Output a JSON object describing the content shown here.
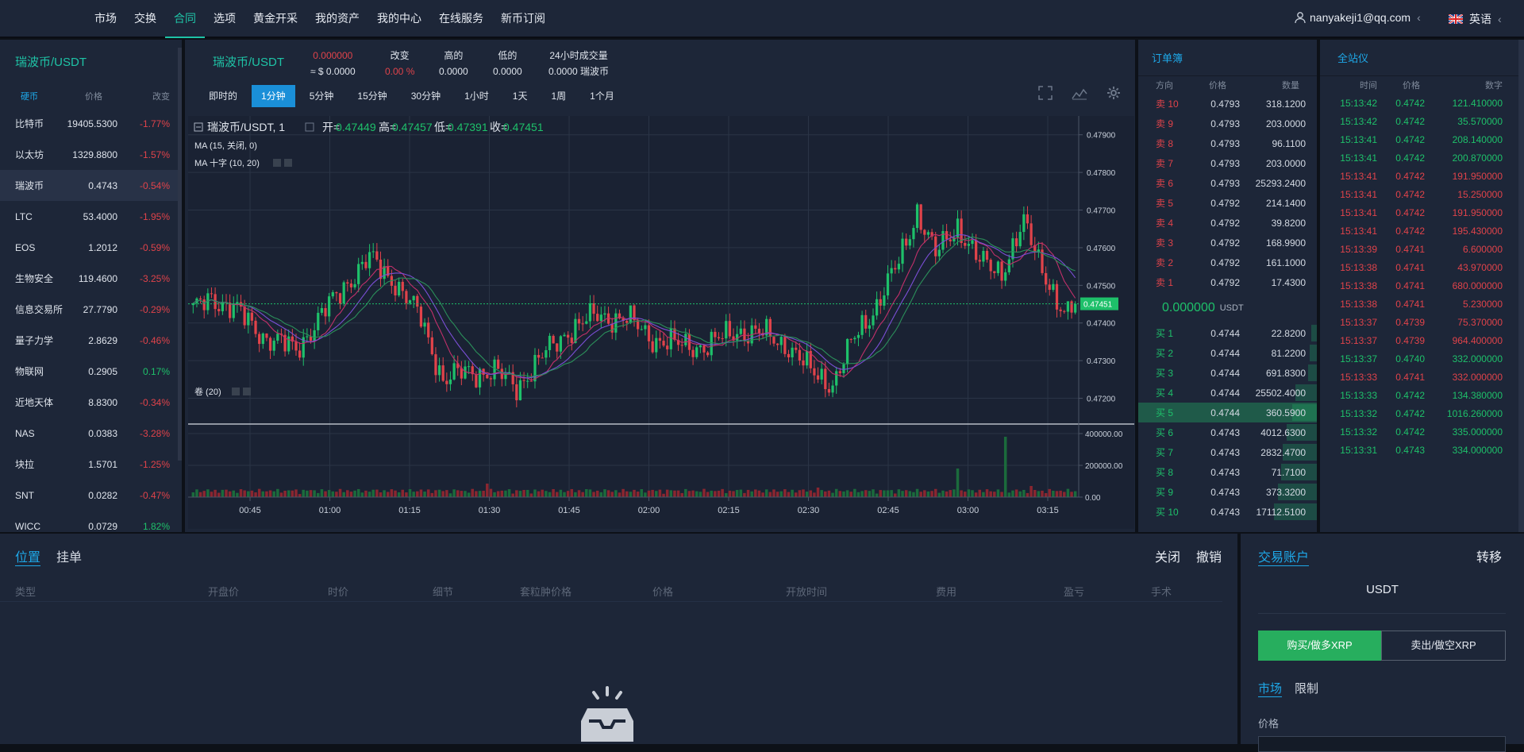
{
  "nav": {
    "items": [
      "市场",
      "交换",
      "合同",
      "选项",
      "黄金开采",
      "我的资产",
      "我的中心",
      "在线服务",
      "新币订阅"
    ],
    "active_index": 2,
    "user_email": "nanyakeji1@qq.com",
    "language": "英语"
  },
  "markets": {
    "pair": "瑞波币/USDT",
    "headers": [
      "硬币",
      "价格",
      "改变"
    ],
    "rows": [
      {
        "name": "比特币",
        "price": "19405.5300",
        "change": "-1.77%",
        "dir": "down"
      },
      {
        "name": "以太坊",
        "price": "1329.8800",
        "change": "-1.57%",
        "dir": "down"
      },
      {
        "name": "瑞波币",
        "price": "0.4743",
        "change": "-0.54%",
        "dir": "down",
        "selected": true
      },
      {
        "name": "LTC",
        "price": "53.4000",
        "change": "-1.95%",
        "dir": "down"
      },
      {
        "name": "EOS",
        "price": "1.2012",
        "change": "-0.59%",
        "dir": "down"
      },
      {
        "name": "生物安全",
        "price": "119.4600",
        "change": "-3.25%",
        "dir": "down"
      },
      {
        "name": "信息交易所",
        "price": "27.7790",
        "change": "-0.29%",
        "dir": "down"
      },
      {
        "name": "量子力学",
        "price": "2.8629",
        "change": "-0.46%",
        "dir": "down"
      },
      {
        "name": "物联网",
        "price": "0.2905",
        "change": "0.17%",
        "dir": "up"
      },
      {
        "name": "近地天体",
        "price": "8.8300",
        "change": "-0.34%",
        "dir": "down"
      },
      {
        "name": "NAS",
        "price": "0.0383",
        "change": "-3.28%",
        "dir": "down"
      },
      {
        "name": "块拉",
        "price": "1.5701",
        "change": "-1.25%",
        "dir": "down"
      },
      {
        "name": "SNT",
        "price": "0.0282",
        "change": "-0.47%",
        "dir": "down"
      },
      {
        "name": "WICC",
        "price": "0.0729",
        "change": "1.82%",
        "dir": "up"
      }
    ]
  },
  "ticker": {
    "pair": "瑞波币/USDT",
    "last": "0.000000",
    "approx": "≈ $ 0.0000",
    "change_label": "改变",
    "change_value": "0.00 %",
    "high_label": "高的",
    "high_value": "0.0000",
    "low_label": "低的",
    "low_value": "0.0000",
    "vol_label": "24小时成交量",
    "vol_value": "0.0000 瑞波币"
  },
  "timeframes": [
    "即时的",
    "1分钟",
    "5分钟",
    "15分钟",
    "30分钟",
    "1小时",
    "1天",
    "1周",
    "1个月"
  ],
  "timeframe_active": 1,
  "chart_data": {
    "type": "candlestick",
    "legend_title": "瑞波币/USDT, 1",
    "ohlc_text": {
      "open_label": "开=",
      "open": "0.47449",
      "high_label": "高=",
      "high": "0.47457",
      "low_label": "低=",
      "low": "0.47391",
      "close_label": "收=",
      "close": "0.47451"
    },
    "ma_label": "MA (15, 关闭, 0)",
    "ma_cross_label": "MA 十字 (10, 20)",
    "volume_label": "卷 (20)",
    "y_ticks": [
      "0.47900",
      "0.47800",
      "0.47700",
      "0.47600",
      "0.47500",
      "0.47400",
      "0.47300",
      "0.47200"
    ],
    "y_range": [
      0.4714,
      0.4795
    ],
    "last_price": "0.47451",
    "last_value": 0.47451,
    "volume_ticks": [
      "400000.00",
      "200000.00",
      "0.00"
    ],
    "volume_range": [
      0,
      440000
    ],
    "x_ticks": [
      "00:45",
      "01:00",
      "01:15",
      "01:30",
      "01:45",
      "02:00",
      "02:15",
      "02:30",
      "02:45",
      "03:00",
      "03:15"
    ],
    "up_color": "#1ec06a",
    "down_color": "#e0434a",
    "close_anchors": [
      [
        0,
        0.4743
      ],
      [
        5,
        0.4747
      ],
      [
        12,
        0.4743
      ],
      [
        20,
        0.4736
      ],
      [
        28,
        0.4733
      ],
      [
        35,
        0.4742
      ],
      [
        42,
        0.4751
      ],
      [
        48,
        0.4757
      ],
      [
        55,
        0.4751
      ],
      [
        62,
        0.4741
      ],
      [
        68,
        0.4725
      ],
      [
        75,
        0.4727
      ],
      [
        82,
        0.4727
      ],
      [
        88,
        0.4723
      ],
      [
        95,
        0.4731
      ],
      [
        102,
        0.4738
      ],
      [
        110,
        0.4742
      ],
      [
        118,
        0.4741
      ],
      [
        125,
        0.4736
      ],
      [
        132,
        0.4734
      ],
      [
        140,
        0.4734
      ],
      [
        148,
        0.4738
      ],
      [
        155,
        0.4737
      ],
      [
        162,
        0.4734
      ],
      [
        168,
        0.4727
      ],
      [
        174,
        0.4724
      ],
      [
        180,
        0.4736
      ],
      [
        186,
        0.4745
      ],
      [
        192,
        0.4756
      ],
      [
        197,
        0.477
      ],
      [
        202,
        0.4758
      ],
      [
        208,
        0.4766
      ],
      [
        214,
        0.4756
      ],
      [
        220,
        0.4754
      ],
      [
        226,
        0.4766
      ],
      [
        232,
        0.4753
      ],
      [
        237,
        0.4741
      ],
      [
        240,
        0.4745
      ]
    ],
    "volume_spikes": {
      "80": 85000,
      "107": 50000,
      "170": 60000,
      "208": 180000,
      "221": 380000,
      "228": 70000
    }
  },
  "orderbook": {
    "title": "订单簿",
    "headers": [
      "方向",
      "价格",
      "数量"
    ],
    "asks": [
      {
        "side": "卖 10",
        "price": "0.4793",
        "qty": "318.1200"
      },
      {
        "side": "卖 9",
        "price": "0.4793",
        "qty": "203.0000"
      },
      {
        "side": "卖 8",
        "price": "0.4793",
        "qty": "96.1100"
      },
      {
        "side": "卖 7",
        "price": "0.4793",
        "qty": "203.0000"
      },
      {
        "side": "卖 6",
        "price": "0.4793",
        "qty": "25293.2400"
      },
      {
        "side": "卖 5",
        "price": "0.4792",
        "qty": "214.1400"
      },
      {
        "side": "卖 4",
        "price": "0.4792",
        "qty": "39.8200"
      },
      {
        "side": "卖 3",
        "price": "0.4792",
        "qty": "168.9900"
      },
      {
        "side": "卖 2",
        "price": "0.4792",
        "qty": "161.1000"
      },
      {
        "side": "卖 1",
        "price": "0.4792",
        "qty": "17.4300"
      }
    ],
    "mid_price": "0.000000",
    "mid_unit": "USDT",
    "bids": [
      {
        "side": "买 1",
        "price": "0.4744",
        "qty": "22.8200",
        "depth": 0.03
      },
      {
        "side": "买 2",
        "price": "0.4744",
        "qty": "81.2200",
        "depth": 0.04
      },
      {
        "side": "买 3",
        "price": "0.4744",
        "qty": "691.8300",
        "depth": 0.05
      },
      {
        "side": "买 4",
        "price": "0.4744",
        "qty": "25502.4000",
        "depth": 0.12
      },
      {
        "side": "买 5",
        "price": "0.4744",
        "qty": "360.5900",
        "depth": 0.14,
        "highlight": true
      },
      {
        "side": "买 6",
        "price": "0.4743",
        "qty": "4012.6300",
        "depth": 0.17
      },
      {
        "side": "买 7",
        "price": "0.4743",
        "qty": "2832.4700",
        "depth": 0.19
      },
      {
        "side": "买 8",
        "price": "0.4743",
        "qty": "71.7100",
        "depth": 0.2
      },
      {
        "side": "买 9",
        "price": "0.4743",
        "qty": "373.3200",
        "depth": 0.22
      },
      {
        "side": "买 10",
        "price": "0.4743",
        "qty": "17112.5100",
        "depth": 0.24
      }
    ]
  },
  "trades": {
    "title": "全站仪",
    "headers": [
      "时间",
      "价格",
      "数字"
    ],
    "rows": [
      {
        "time": "15:13:42",
        "price": "0.4742",
        "qty": "121.410000",
        "dir": "up"
      },
      {
        "time": "15:13:42",
        "price": "0.4742",
        "qty": "35.570000",
        "dir": "up"
      },
      {
        "time": "15:13:41",
        "price": "0.4742",
        "qty": "208.140000",
        "dir": "up"
      },
      {
        "time": "15:13:41",
        "price": "0.4742",
        "qty": "200.870000",
        "dir": "up"
      },
      {
        "time": "15:13:41",
        "price": "0.4742",
        "qty": "191.950000",
        "dir": "down"
      },
      {
        "time": "15:13:41",
        "price": "0.4742",
        "qty": "15.250000",
        "dir": "down"
      },
      {
        "time": "15:13:41",
        "price": "0.4742",
        "qty": "191.950000",
        "dir": "down"
      },
      {
        "time": "15:13:41",
        "price": "0.4742",
        "qty": "195.430000",
        "dir": "down"
      },
      {
        "time": "15:13:39",
        "price": "0.4741",
        "qty": "6.600000",
        "dir": "down"
      },
      {
        "time": "15:13:38",
        "price": "0.4741",
        "qty": "43.970000",
        "dir": "down"
      },
      {
        "time": "15:13:38",
        "price": "0.4741",
        "qty": "680.000000",
        "dir": "down"
      },
      {
        "time": "15:13:38",
        "price": "0.4741",
        "qty": "5.230000",
        "dir": "down"
      },
      {
        "time": "15:13:37",
        "price": "0.4739",
        "qty": "75.370000",
        "dir": "down"
      },
      {
        "time": "15:13:37",
        "price": "0.4739",
        "qty": "964.400000",
        "dir": "down"
      },
      {
        "time": "15:13:37",
        "price": "0.4740",
        "qty": "332.000000",
        "dir": "up"
      },
      {
        "time": "15:13:33",
        "price": "0.4741",
        "qty": "332.000000",
        "dir": "down"
      },
      {
        "time": "15:13:33",
        "price": "0.4742",
        "qty": "134.380000",
        "dir": "up"
      },
      {
        "time": "15:13:32",
        "price": "0.4742",
        "qty": "1016.260000",
        "dir": "up"
      },
      {
        "time": "15:13:32",
        "price": "0.4742",
        "qty": "335.000000",
        "dir": "up"
      },
      {
        "time": "15:13:31",
        "price": "0.4743",
        "qty": "334.000000",
        "dir": "up"
      }
    ]
  },
  "positions": {
    "tabs": [
      "位置",
      "挂单"
    ],
    "actions": [
      "关闭",
      "撤销"
    ],
    "columns": [
      "类型",
      "开盘价",
      "时价",
      "细节",
      "套粒肿价格",
      "价格",
      "开放时间",
      "费用",
      "盈亏",
      "手术"
    ]
  },
  "account": {
    "tab": "交易账户",
    "transfer": "转移",
    "currency": "USDT",
    "buy_label": "购买/做多XRP",
    "sell_label": "卖出/做空XRP",
    "order_types": [
      "市场",
      "限制"
    ],
    "price_label": "价格"
  }
}
